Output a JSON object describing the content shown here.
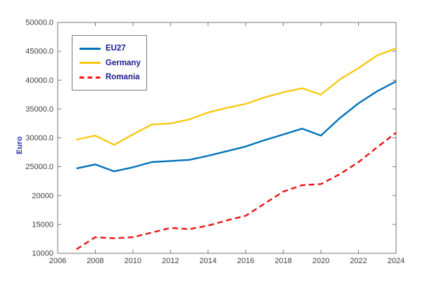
{
  "figure": {
    "background": "#ffffff",
    "ylabel": "Euro",
    "ylabel_color": "#2b2fb0",
    "axis_color": "#767676",
    "tick_label_color": "#3f3f3f"
  },
  "legend": {
    "text_color": "#1b1b8f",
    "border_color": "#7a7a7a",
    "entries": [
      {
        "label": "EU27",
        "color": "#0072BD",
        "style": "solid"
      },
      {
        "label": "Germany",
        "color": "#F7C913",
        "style": "solid"
      },
      {
        "label": "Romania",
        "color": "#EE1212",
        "style": "dashed"
      }
    ]
  },
  "chart_data": {
    "type": "line",
    "title": "",
    "xlabel": "",
    "ylabel": "Euro",
    "grid": false,
    "legend_position": "upper-left-inside",
    "xlim": [
      2006,
      2024
    ],
    "ylim": [
      10000,
      50000
    ],
    "x": [
      2007,
      2008,
      2009,
      2010,
      2011,
      2012,
      2013,
      2014,
      2015,
      2016,
      2017,
      2018,
      2019,
      2020,
      2021,
      2022,
      2023,
      2024
    ],
    "series": [
      {
        "name": "EU27",
        "color": "#0072BD",
        "style": "solid",
        "values": [
          24700,
          25400,
          24200,
          24900,
          25800,
          26000,
          26200,
          26900,
          27700,
          28500,
          29600,
          30600,
          31600,
          30400,
          33400,
          36000,
          38100,
          39800
        ]
      },
      {
        "name": "Germany",
        "color": "#F7C913",
        "style": "solid",
        "values": [
          29700,
          30400,
          28800,
          30600,
          32300,
          32500,
          33200,
          34400,
          35200,
          35900,
          37000,
          37900,
          38600,
          37500,
          40100,
          42100,
          44300,
          45500
        ]
      },
      {
        "name": "Romania",
        "color": "#EE1212",
        "style": "dashed",
        "values": [
          10700,
          12800,
          12600,
          12800,
          13600,
          14400,
          14200,
          14800,
          15700,
          16500,
          18600,
          20700,
          21800,
          22000,
          23700,
          25800,
          28400,
          30900
        ]
      }
    ],
    "xtick_values": [
      2006,
      2008,
      2010,
      2012,
      2014,
      2016,
      2018,
      2020,
      2022,
      2024
    ],
    "xtick_labels": [
      "2006",
      "2008",
      "2010",
      "2012",
      "2014",
      "2016",
      "2018",
      "2020",
      "2022",
      "2024"
    ],
    "ytick_values": [
      10000,
      15000,
      20000,
      25000,
      30000,
      35000,
      40000,
      45000,
      50000
    ],
    "ytick_labels": [
      "10000",
      "15000",
      "20000",
      "25000.0",
      "30000.0",
      "35000.0",
      "40000.0",
      "45000.0",
      "50000.0"
    ]
  }
}
